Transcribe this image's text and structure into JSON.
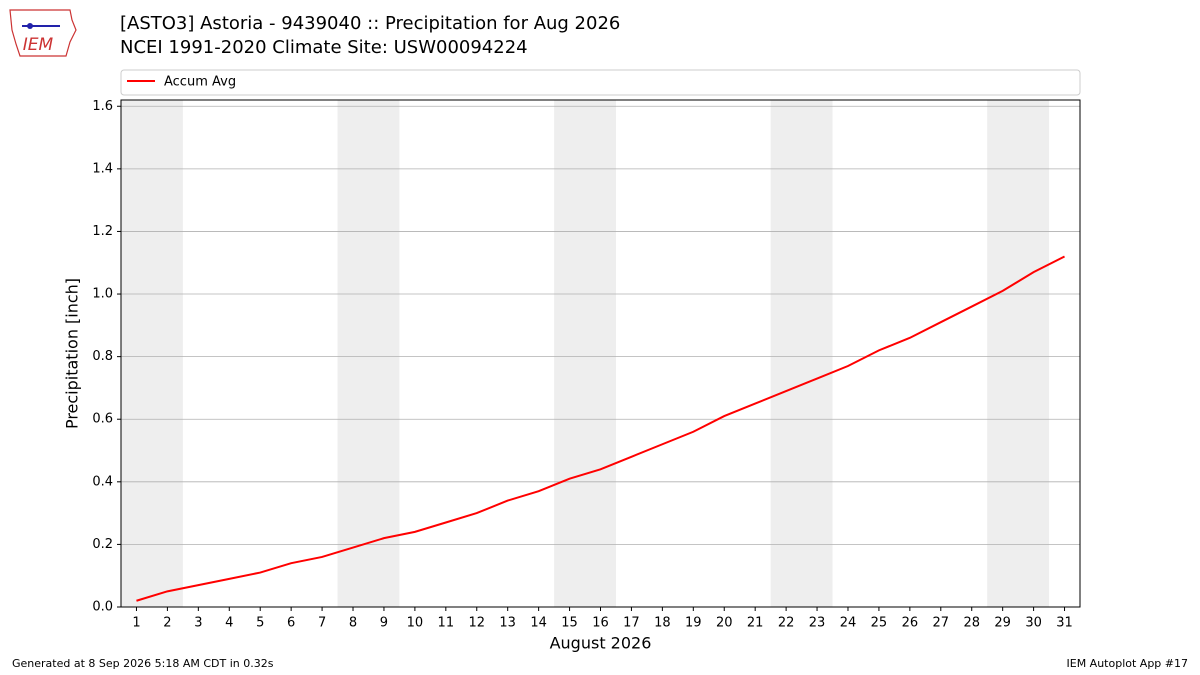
{
  "header": {
    "logo": "IEM"
  },
  "chart_data": {
    "type": "line",
    "title": "[ASTO3] Astoria - 9439040 :: Precipitation for Aug 2026",
    "subtitle": "NCEI 1991-2020 Climate Site: USW00094224",
    "x_label": "August 2026",
    "y_label": "Precipitation [inch]",
    "x": [
      1,
      2,
      3,
      4,
      5,
      6,
      7,
      8,
      9,
      10,
      11,
      12,
      13,
      14,
      15,
      16,
      17,
      18,
      19,
      20,
      21,
      22,
      23,
      24,
      25,
      26,
      27,
      28,
      29,
      30,
      31
    ],
    "series": [
      {
        "name": "Accum Avg",
        "color": "#ff0000",
        "values": [
          0.02,
          0.05,
          0.07,
          0.09,
          0.11,
          0.14,
          0.16,
          0.19,
          0.22,
          0.24,
          0.27,
          0.3,
          0.34,
          0.37,
          0.41,
          0.44,
          0.48,
          0.52,
          0.56,
          0.61,
          0.65,
          0.69,
          0.73,
          0.77,
          0.82,
          0.86,
          0.91,
          0.96,
          1.01,
          1.07,
          1.12
        ]
      }
    ],
    "xlim": [
      0.5,
      31.5
    ],
    "ylim": [
      0,
      1.62
    ],
    "xticks": [
      1,
      2,
      3,
      4,
      5,
      6,
      7,
      8,
      9,
      10,
      11,
      12,
      13,
      14,
      15,
      16,
      17,
      18,
      19,
      20,
      21,
      22,
      23,
      24,
      25,
      26,
      27,
      28,
      29,
      30,
      31
    ],
    "yticks": [
      {
        "value": 0,
        "label": "0.0"
      },
      0.2,
      0.4,
      0.6,
      0.8,
      {
        "value": 1,
        "label": "1.0"
      },
      1.2,
      1.4,
      1.6
    ],
    "grid": "y",
    "legend": "top",
    "shaded_ranges": [
      [
        0.5,
        2.5
      ],
      [
        7.5,
        9.5
      ],
      [
        14.5,
        16.5
      ],
      [
        21.5,
        23.5
      ],
      [
        28.5,
        30.5
      ]
    ],
    "shade_color": "#eeeeee"
  },
  "footer": {
    "left": "Generated at 8 Sep 2026 5:18 AM CDT in 0.32s",
    "right": "IEM Autoplot App #17"
  }
}
